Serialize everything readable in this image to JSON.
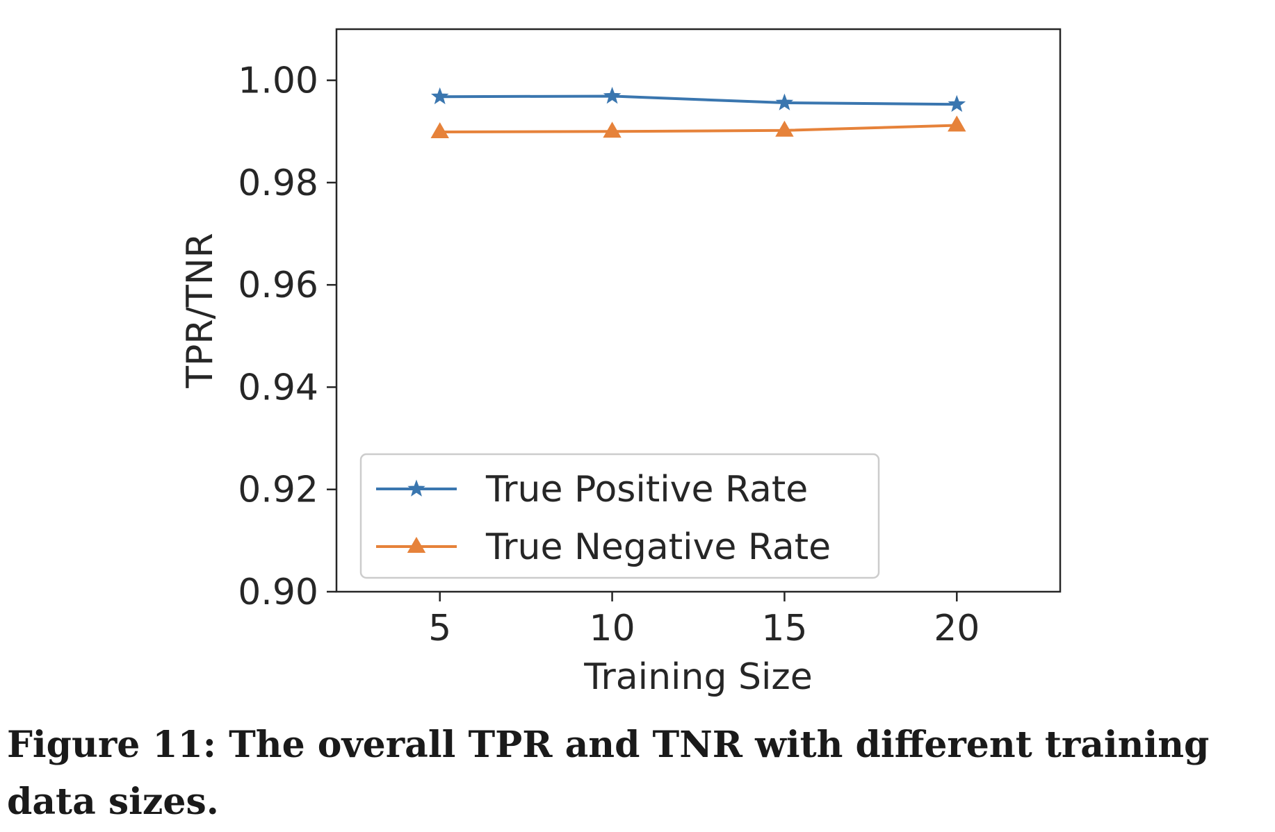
{
  "chart_data": {
    "type": "line",
    "x": [
      5,
      10,
      15,
      20
    ],
    "series": [
      {
        "name": "True Positive Rate",
        "values": [
          0.9968,
          0.9969,
          0.9956,
          0.9953
        ],
        "color": "#3a76af",
        "marker": "star"
      },
      {
        "name": "True Negative Rate",
        "values": [
          0.9899,
          0.99,
          0.9902,
          0.9912
        ],
        "color": "#e6823a",
        "marker": "triangle"
      }
    ],
    "xlabel": "Training Size",
    "ylabel": "TPR/TNR",
    "xlim": [
      2,
      23
    ],
    "ylim": [
      0.9,
      1.01
    ],
    "xticks": [
      5,
      10,
      15,
      20
    ],
    "yticks": [
      0.9,
      0.92,
      0.94,
      0.96,
      0.98,
      1.0
    ],
    "ytick_labels": [
      "0.90",
      "0.92",
      "0.94",
      "0.96",
      "0.98",
      "1.00"
    ],
    "legend_position": "lower-center",
    "grid": false
  },
  "caption": "Figure 11: The overall TPR and TNR with different training data sizes."
}
